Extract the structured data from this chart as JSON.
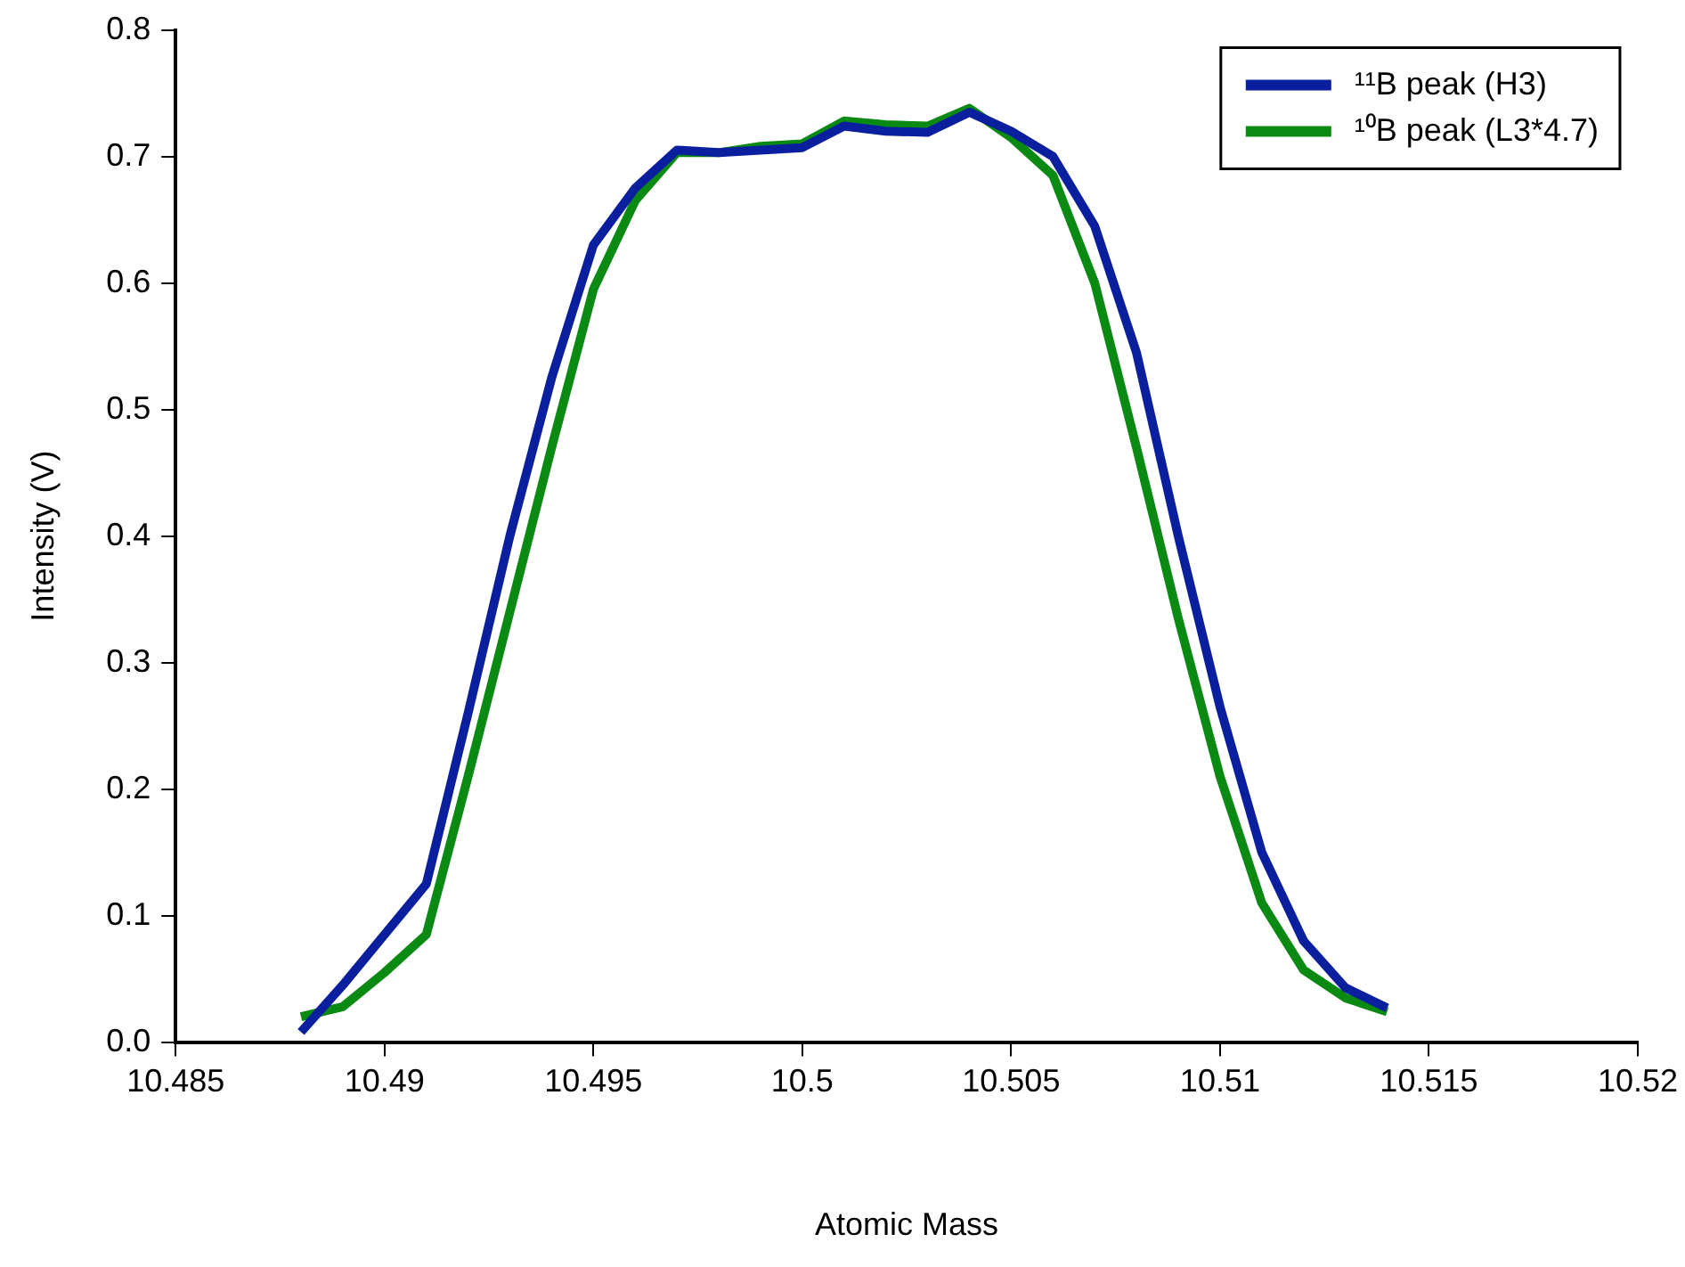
{
  "chart_data": {
    "type": "line",
    "xlabel": "Atomic Mass",
    "ylabel": "Intensity (V)",
    "x": [
      10.488,
      10.489,
      10.49,
      10.491,
      10.492,
      10.493,
      10.494,
      10.495,
      10.496,
      10.497,
      10.498,
      10.499,
      10.5,
      10.501,
      10.502,
      10.503,
      10.504,
      10.505,
      10.506,
      10.507,
      10.508,
      10.509,
      10.51,
      10.511,
      10.512,
      10.513,
      10.514
    ],
    "series": [
      {
        "name": "¹¹B peak (H3)",
        "color": "#0a1f9e",
        "values": [
          0.008,
          0.045,
          0.085,
          0.125,
          0.26,
          0.4,
          0.525,
          0.63,
          0.675,
          0.705,
          0.703,
          0.705,
          0.707,
          0.724,
          0.72,
          0.719,
          0.735,
          0.72,
          0.7,
          0.645,
          0.545,
          0.4,
          0.265,
          0.15,
          0.08,
          0.043,
          0.027
        ]
      },
      {
        "name": "¹⁰B peak (L3*4.7)",
        "color": "#0a8a12",
        "values": [
          0.02,
          0.028,
          0.055,
          0.085,
          0.21,
          0.34,
          0.47,
          0.595,
          0.665,
          0.703,
          0.703,
          0.708,
          0.71,
          0.728,
          0.725,
          0.724,
          0.738,
          0.715,
          0.685,
          0.6,
          0.47,
          0.335,
          0.21,
          0.11,
          0.057,
          0.035,
          0.024
        ]
      }
    ],
    "xlim": [
      10.485,
      10.52
    ],
    "xticks": [
      10.485,
      10.49,
      10.495,
      10.5,
      10.505,
      10.51,
      10.515,
      10.52
    ],
    "ylim": [
      0,
      0.8
    ],
    "yticks": [
      {
        "value": 0,
        "label": "0.0"
      },
      {
        "value": 0.1,
        "label": "0.1"
      },
      {
        "value": 0.2,
        "label": "0.2"
      },
      {
        "value": 0.3,
        "label": "0.3"
      },
      {
        "value": 0.4,
        "label": "0.4"
      },
      {
        "value": 0.5,
        "label": "0.5"
      },
      {
        "value": 0.6,
        "label": "0.6"
      },
      {
        "value": 0.7,
        "label": "0.7"
      },
      {
        "value": 0.8,
        "label": "0.8"
      }
    ],
    "grid": false,
    "legend": "top right",
    "marker": "none",
    "line_style": "solid"
  }
}
